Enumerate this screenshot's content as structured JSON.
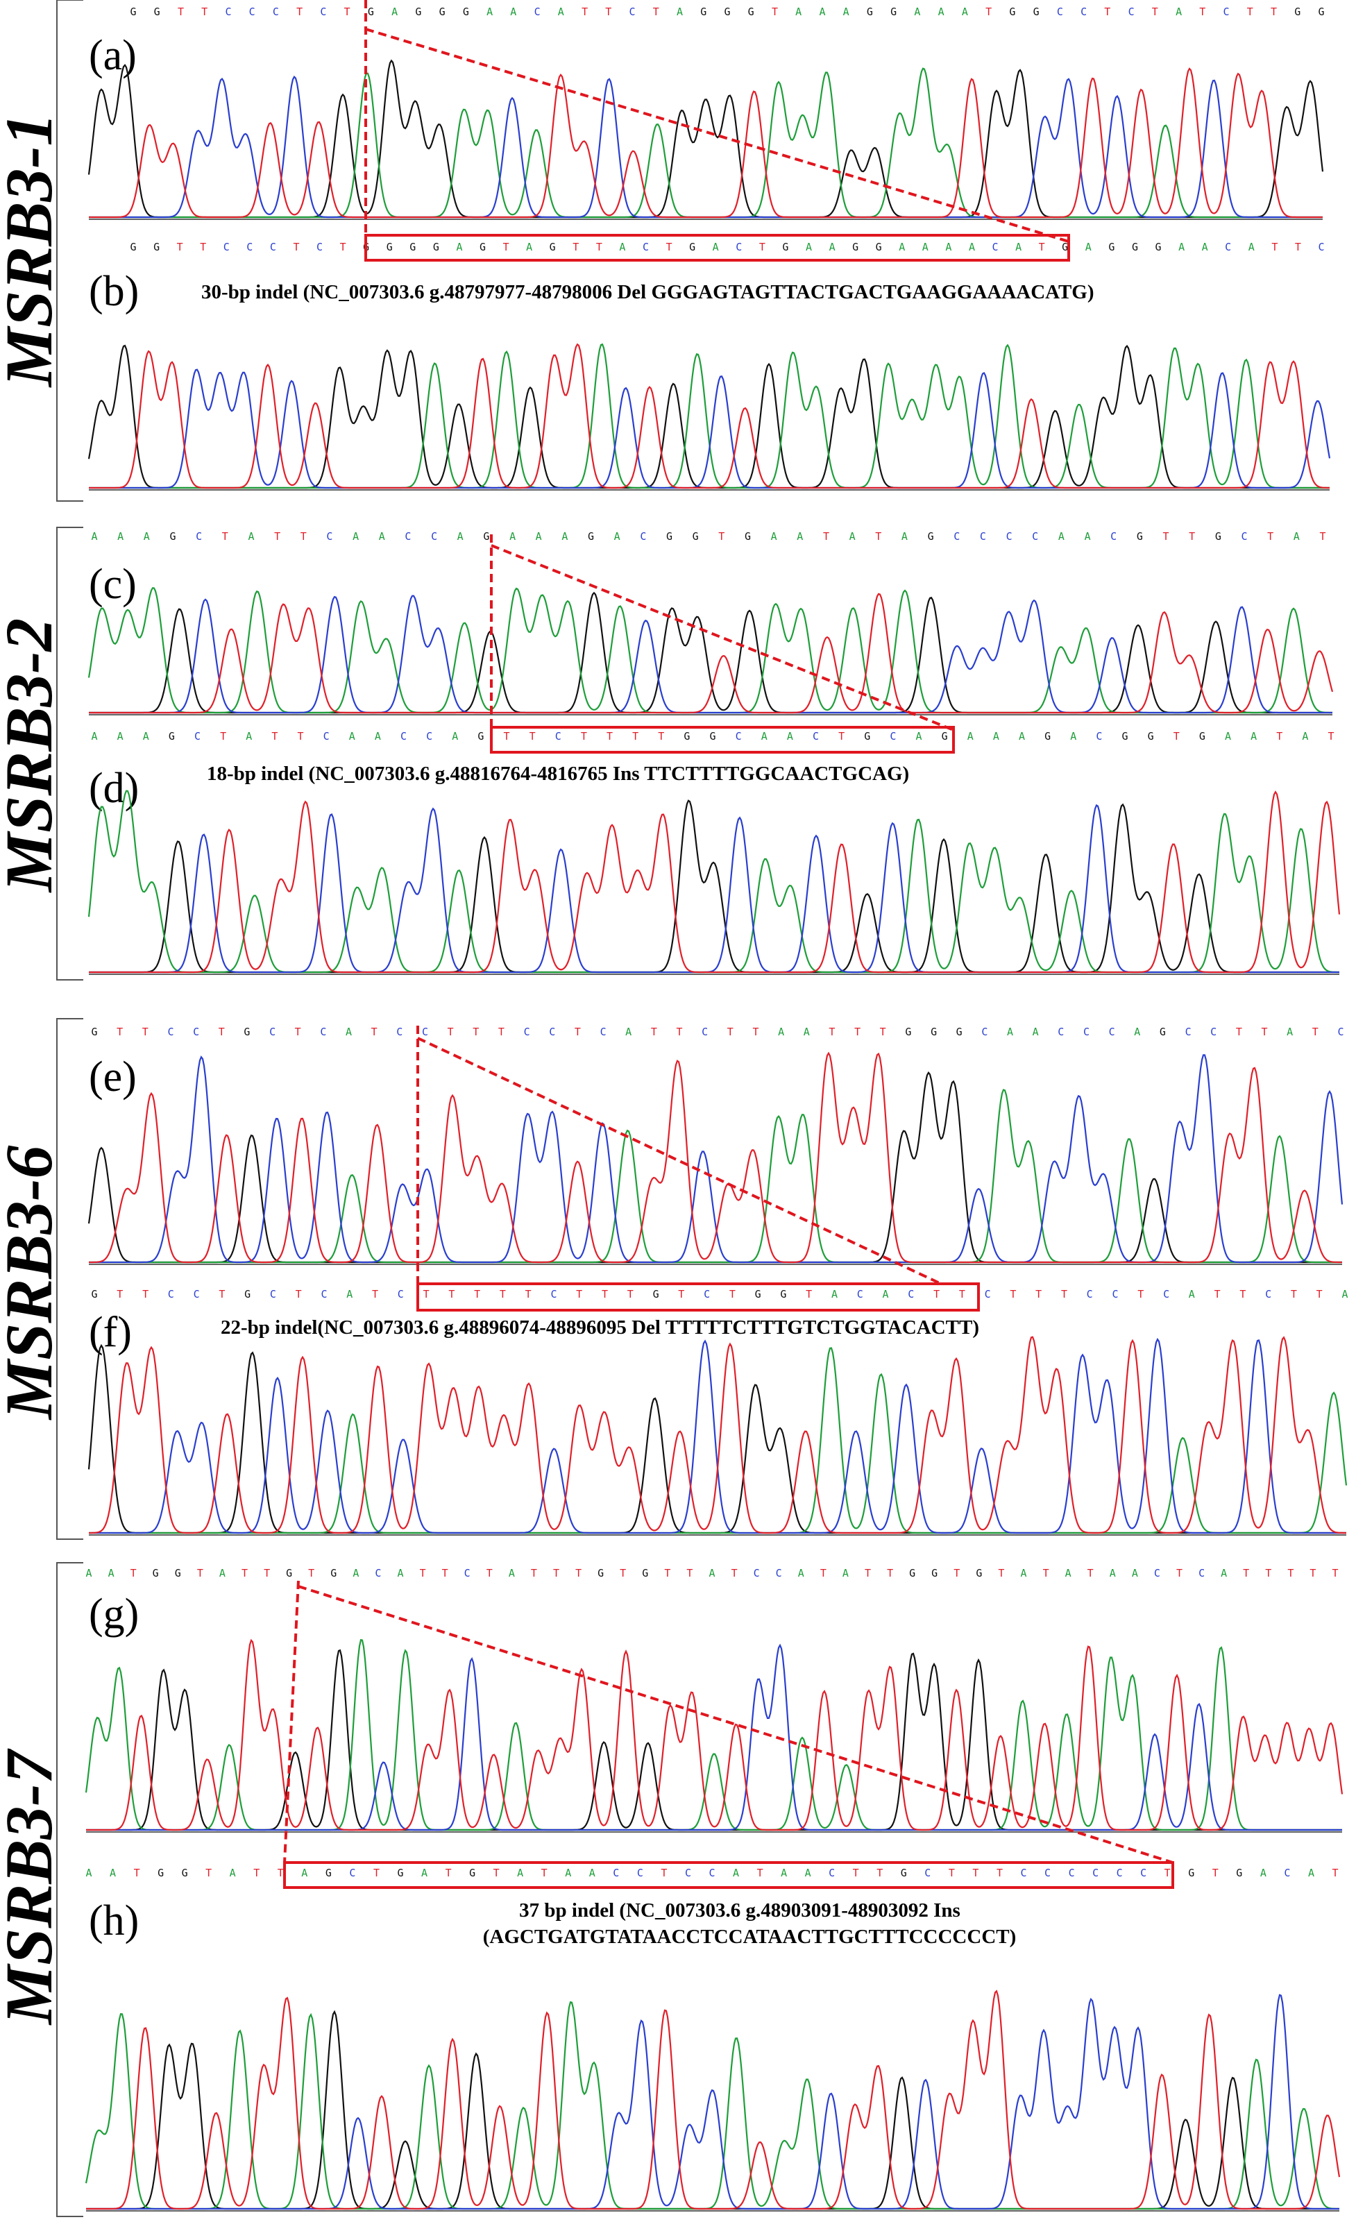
{
  "colors": {
    "A": "#1e9e3a",
    "C": "#2a3fcf",
    "G": "#111111",
    "T": "#e0202a",
    "annotation": "#e0161e"
  },
  "groups": [
    {
      "gene": "MSRB3-1",
      "ref_label": "(a)",
      "mut_label": "(b)",
      "ref_seq": "GGTTCCCTCTGAGGGAACATTCTAGGGTAAAGGAAATGGCCTCTATCTTGG",
      "mut_seq": "GGTTCCCTCTGGGGAGTAGTTACTGACTGAAGGAAAACATGAGGGAACATTC",
      "caption_lines": [
        "30-bp indel (NC_007303.6 g.48797977-48798006 Del GGGAGTAGTTACTGACTGAAGGAAAACATG)"
      ]
    },
    {
      "gene": "MSRB3-2",
      "ref_label": "(c)",
      "mut_label": "(d)",
      "ref_seq": "AAAGCTATTCAACCAGAAAGACGGTGAATATAGCCCCAACGTTGCTAT",
      "mut_seq": "AAAGCTATTCAACCAGTTCTTTTGGCAACTGCAGAAAGACGGTGAATAT",
      "caption_lines": [
        "18-bp indel (NC_007303.6 g.48816764-4816765 Ins TTCTTTTGGCAACTGCAG)"
      ]
    },
    {
      "gene": "MSRB3-6",
      "ref_label": "(e)",
      "mut_label": "(f)",
      "ref_seq": "GTTCCTGCTCATCCTTTCCTCATTCTTAATTTGGGCAACCCAGCCTTATC",
      "mut_seq": "GTTCCTGCTCATCTTTTTCTTTGTCTGGTACACTTCTTTCCTCATTCTTA",
      "caption_lines": [
        "22-bp indel(NC_007303.6 g.48896074-48896095 Del TTTTTCTTTGTCTGGTACACTT)"
      ]
    },
    {
      "gene": "MSRB3-7",
      "ref_label": "(g)",
      "mut_label": "(h)",
      "ref_seq": "AATGGTATTGTGACATTCTATTTGTGTTATCCATATTGGTGTATATAACTCATTTTT",
      "mut_seq": "AATGGTATTAGCTGATGTATAACCTCCATAACTTGCTTTCCCCCCTGTGACAT",
      "caption_lines": [
        "37 bp indel (NC_007303.6 g.48903091-48903092 Ins",
        "(AGCTGATGTATAACCTCCATAACTTGCTTTCCCCCCT)"
      ]
    }
  ]
}
